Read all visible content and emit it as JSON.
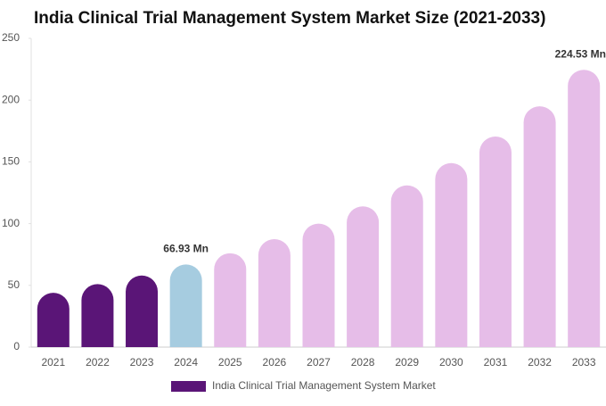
{
  "chart_data": {
    "type": "bar",
    "title": "India Clinical Trial Management System Market Size (2021-2033)",
    "categories": [
      "2021",
      "2022",
      "2023",
      "2024",
      "2025",
      "2026",
      "2027",
      "2028",
      "2029",
      "2030",
      "2031",
      "2032",
      "2033"
    ],
    "series": [
      {
        "name": "India Clinical Trial Management System Market",
        "color": "#5a1577",
        "values": [
          44,
          51,
          58,
          66.93,
          76,
          87.4,
          100,
          114,
          131,
          149,
          170.5,
          195,
          224.53
        ],
        "bar_colors": [
          "#5a1577",
          "#5a1577",
          "#5a1577",
          "#a6cce0",
          "#e6bde8",
          "#e6bde8",
          "#e6bde8",
          "#e6bde8",
          "#e6bde8",
          "#e6bde8",
          "#e6bde8",
          "#e6bde8",
          "#e6bde8"
        ],
        "value_labels": [
          null,
          null,
          null,
          "66.93 Mn",
          null,
          null,
          null,
          null,
          null,
          null,
          null,
          null,
          "224.53 Mn"
        ]
      }
    ],
    "ylim": [
      0,
      250
    ],
    "yticks": [
      0,
      50,
      100,
      150,
      200,
      250
    ],
    "grid": false
  }
}
